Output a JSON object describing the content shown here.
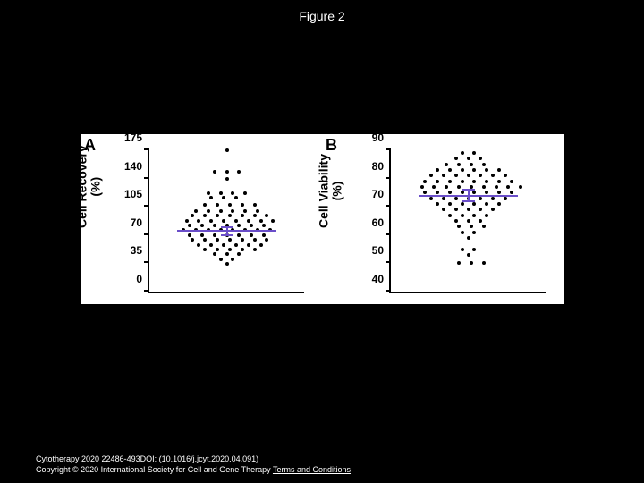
{
  "title": "Figure 2",
  "citation": "Cytotherapy 2020 22486-493DOI: (10.1016/j.jcyt.2020.04.091)",
  "copyright_prefix": "Copyright © 2020 International Society for Cell and Gene Therapy ",
  "terms_label": "Terms and Conditions",
  "panels": {
    "A": {
      "label": "A",
      "ylabel_line1": "Cell Recovery",
      "ylabel_line2": "(%)",
      "ylim": [
        0,
        175
      ],
      "yticks": [
        0,
        35,
        70,
        105,
        140,
        175
      ],
      "median": 75,
      "err_low": 70,
      "err_high": 80,
      "median_color": "#6a4ec9",
      "points": [
        [
          0.5,
          175
        ],
        [
          0.42,
          148
        ],
        [
          0.5,
          148
        ],
        [
          0.58,
          148
        ],
        [
          0.5,
          140
        ],
        [
          0.38,
          122
        ],
        [
          0.46,
          122
        ],
        [
          0.54,
          122
        ],
        [
          0.62,
          122
        ],
        [
          0.4,
          116
        ],
        [
          0.48,
          116
        ],
        [
          0.56,
          116
        ],
        [
          0.36,
          108
        ],
        [
          0.44,
          108
        ],
        [
          0.52,
          108
        ],
        [
          0.6,
          108
        ],
        [
          0.68,
          108
        ],
        [
          0.3,
          100
        ],
        [
          0.38,
          100
        ],
        [
          0.46,
          100
        ],
        [
          0.54,
          100
        ],
        [
          0.62,
          100
        ],
        [
          0.7,
          100
        ],
        [
          0.28,
          94
        ],
        [
          0.36,
          94
        ],
        [
          0.44,
          94
        ],
        [
          0.52,
          94
        ],
        [
          0.6,
          94
        ],
        [
          0.68,
          94
        ],
        [
          0.76,
          94
        ],
        [
          0.24,
          88
        ],
        [
          0.32,
          88
        ],
        [
          0.4,
          88
        ],
        [
          0.48,
          88
        ],
        [
          0.56,
          88
        ],
        [
          0.64,
          88
        ],
        [
          0.72,
          88
        ],
        [
          0.8,
          88
        ],
        [
          0.26,
          82
        ],
        [
          0.34,
          82
        ],
        [
          0.42,
          82
        ],
        [
          0.5,
          82
        ],
        [
          0.58,
          82
        ],
        [
          0.66,
          82
        ],
        [
          0.74,
          82
        ],
        [
          0.22,
          76
        ],
        [
          0.3,
          76
        ],
        [
          0.38,
          76
        ],
        [
          0.46,
          76
        ],
        [
          0.54,
          76
        ],
        [
          0.62,
          76
        ],
        [
          0.7,
          76
        ],
        [
          0.78,
          76
        ],
        [
          0.26,
          70
        ],
        [
          0.34,
          70
        ],
        [
          0.42,
          70
        ],
        [
          0.5,
          70
        ],
        [
          0.58,
          70
        ],
        [
          0.66,
          70
        ],
        [
          0.74,
          70
        ],
        [
          0.28,
          64
        ],
        [
          0.36,
          64
        ],
        [
          0.44,
          64
        ],
        [
          0.52,
          64
        ],
        [
          0.6,
          64
        ],
        [
          0.68,
          64
        ],
        [
          0.76,
          64
        ],
        [
          0.32,
          58
        ],
        [
          0.4,
          58
        ],
        [
          0.48,
          58
        ],
        [
          0.56,
          58
        ],
        [
          0.64,
          58
        ],
        [
          0.72,
          58
        ],
        [
          0.36,
          52
        ],
        [
          0.44,
          52
        ],
        [
          0.52,
          52
        ],
        [
          0.6,
          52
        ],
        [
          0.68,
          52
        ],
        [
          0.42,
          46
        ],
        [
          0.5,
          46
        ],
        [
          0.58,
          46
        ],
        [
          0.46,
          40
        ],
        [
          0.54,
          40
        ],
        [
          0.5,
          34
        ]
      ]
    },
    "B": {
      "label": "B",
      "ylabel_line1": "Cell Viability",
      "ylabel_line2": "(%)",
      "ylim": [
        40,
        90
      ],
      "yticks": [
        40,
        50,
        60,
        70,
        80,
        90
      ],
      "median": 74,
      "err_low": 72,
      "err_high": 76,
      "median_color": "#6a4ec9",
      "points": [
        [
          0.46,
          89
        ],
        [
          0.54,
          89
        ],
        [
          0.42,
          87
        ],
        [
          0.5,
          87
        ],
        [
          0.58,
          87
        ],
        [
          0.36,
          85
        ],
        [
          0.44,
          85
        ],
        [
          0.52,
          85
        ],
        [
          0.6,
          85
        ],
        [
          0.3,
          83
        ],
        [
          0.38,
          83
        ],
        [
          0.46,
          83
        ],
        [
          0.54,
          83
        ],
        [
          0.62,
          83
        ],
        [
          0.7,
          83
        ],
        [
          0.26,
          81
        ],
        [
          0.34,
          81
        ],
        [
          0.42,
          81
        ],
        [
          0.5,
          81
        ],
        [
          0.58,
          81
        ],
        [
          0.66,
          81
        ],
        [
          0.74,
          81
        ],
        [
          0.22,
          79
        ],
        [
          0.3,
          79
        ],
        [
          0.38,
          79
        ],
        [
          0.46,
          79
        ],
        [
          0.54,
          79
        ],
        [
          0.62,
          79
        ],
        [
          0.7,
          79
        ],
        [
          0.78,
          79
        ],
        [
          0.2,
          77
        ],
        [
          0.28,
          77
        ],
        [
          0.36,
          77
        ],
        [
          0.44,
          77
        ],
        [
          0.52,
          77
        ],
        [
          0.6,
          77
        ],
        [
          0.68,
          77
        ],
        [
          0.76,
          77
        ],
        [
          0.84,
          77
        ],
        [
          0.22,
          75
        ],
        [
          0.3,
          75
        ],
        [
          0.38,
          75
        ],
        [
          0.46,
          75
        ],
        [
          0.54,
          75
        ],
        [
          0.62,
          75
        ],
        [
          0.7,
          75
        ],
        [
          0.78,
          75
        ],
        [
          0.26,
          73
        ],
        [
          0.34,
          73
        ],
        [
          0.42,
          73
        ],
        [
          0.5,
          73
        ],
        [
          0.58,
          73
        ],
        [
          0.66,
          73
        ],
        [
          0.74,
          73
        ],
        [
          0.3,
          71
        ],
        [
          0.38,
          71
        ],
        [
          0.46,
          71
        ],
        [
          0.54,
          71
        ],
        [
          0.62,
          71
        ],
        [
          0.7,
          71
        ],
        [
          0.34,
          69
        ],
        [
          0.42,
          69
        ],
        [
          0.5,
          69
        ],
        [
          0.58,
          69
        ],
        [
          0.66,
          69
        ],
        [
          0.38,
          67
        ],
        [
          0.46,
          67
        ],
        [
          0.54,
          67
        ],
        [
          0.62,
          67
        ],
        [
          0.42,
          65
        ],
        [
          0.5,
          65
        ],
        [
          0.58,
          65
        ],
        [
          0.44,
          63
        ],
        [
          0.52,
          63
        ],
        [
          0.6,
          63
        ],
        [
          0.46,
          61
        ],
        [
          0.54,
          61
        ],
        [
          0.5,
          59
        ],
        [
          0.46,
          55
        ],
        [
          0.54,
          55
        ],
        [
          0.5,
          53
        ],
        [
          0.44,
          50
        ],
        [
          0.52,
          50
        ],
        [
          0.6,
          50
        ]
      ]
    }
  }
}
